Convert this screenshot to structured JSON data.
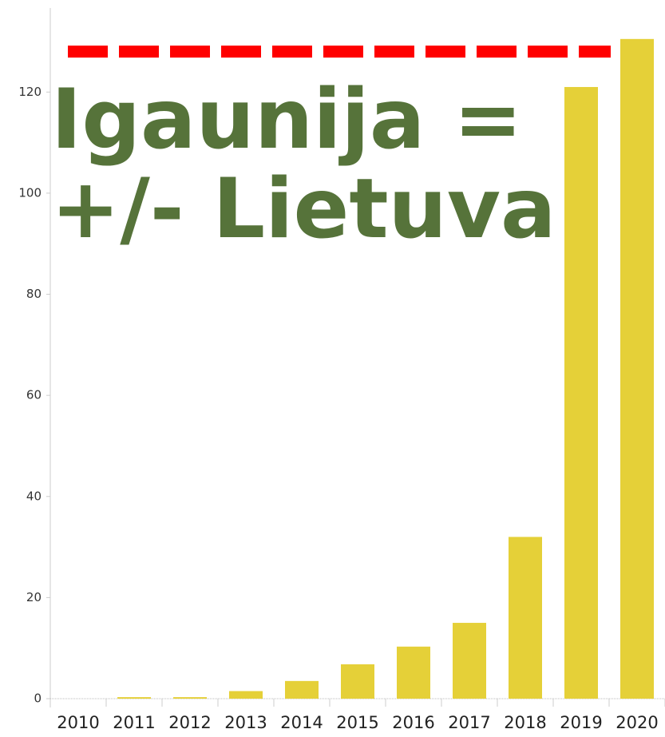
{
  "chart_data": {
    "type": "bar",
    "categories": [
      "2010",
      "2011",
      "2012",
      "2013",
      "2014",
      "2015",
      "2016",
      "2017",
      "2018",
      "2019",
      "2020"
    ],
    "values": [
      0,
      0.3,
      0.3,
      1.5,
      3.5,
      6.8,
      10.3,
      15,
      32,
      121,
      130.5
    ],
    "color": "#e5d038",
    "ylim": [
      0,
      136
    ],
    "yticks": [
      0,
      20,
      40,
      60,
      80,
      100,
      120
    ],
    "grid": false,
    "reference_line": {
      "value": 128,
      "color": "#ff0000"
    },
    "annotation": {
      "lines": [
        "Igaunija =",
        "+/- Lietuva"
      ],
      "color": "#56733a"
    }
  }
}
